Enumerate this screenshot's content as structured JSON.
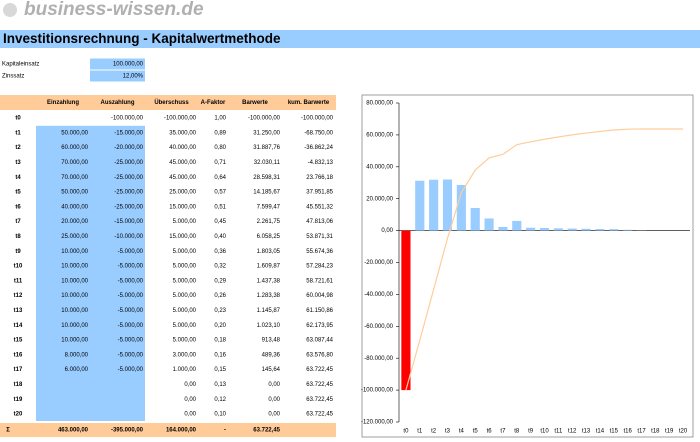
{
  "header": {
    "logo": "business-wissen.de",
    "title": "Investitionsrechnung - Kapitalwertmethode"
  },
  "inputs": [
    {
      "label": "Kapitaleinsatz",
      "value": "100.000,00"
    },
    {
      "label": "Zinssatz",
      "value": "12,00%"
    }
  ],
  "table": {
    "columns": [
      "Einzahlung",
      "Auszahlung",
      "Überschuss",
      "A-Faktor",
      "Barwerte",
      "kum. Barwerte"
    ],
    "rows": [
      [
        "t0",
        null,
        "-100.000,00",
        "-100.000,00",
        "1,00",
        "-100.000,00",
        "-100.000,00"
      ],
      [
        "t1",
        "50.000,00",
        "-15.000,00",
        "35.000,00",
        "0,89",
        "31.250,00",
        "-68.750,00"
      ],
      [
        "t2",
        "60.000,00",
        "-20.000,00",
        "40.000,00",
        "0,80",
        "31.887,76",
        "-36.862,24"
      ],
      [
        "t3",
        "70.000,00",
        "-25.000,00",
        "45.000,00",
        "0,71",
        "32.030,11",
        "-4.832,13"
      ],
      [
        "t4",
        "70.000,00",
        "-25.000,00",
        "45.000,00",
        "0,64",
        "28.598,31",
        "23.766,18"
      ],
      [
        "t5",
        "50.000,00",
        "-25.000,00",
        "25.000,00",
        "0,57",
        "14.185,67",
        "37.951,85"
      ],
      [
        "t6",
        "40.000,00",
        "-25.000,00",
        "15.000,00",
        "0,51",
        "7.599,47",
        "45.551,32"
      ],
      [
        "t7",
        "20.000,00",
        "-15.000,00",
        "5.000,00",
        "0,45",
        "2.261,75",
        "47.813,06"
      ],
      [
        "t8",
        "25.000,00",
        "-10.000,00",
        "15.000,00",
        "0,40",
        "6.058,25",
        "53.871,31"
      ],
      [
        "t9",
        "10.000,00",
        "-5.000,00",
        "5.000,00",
        "0,36",
        "1.803,05",
        "55.674,36"
      ],
      [
        "t10",
        "10.000,00",
        "-5.000,00",
        "5.000,00",
        "0,32",
        "1.609,87",
        "57.284,23"
      ],
      [
        "t11",
        "10.000,00",
        "-5.000,00",
        "5.000,00",
        "0,29",
        "1.437,38",
        "58.721,61"
      ],
      [
        "t12",
        "10.000,00",
        "-5.000,00",
        "5.000,00",
        "0,26",
        "1.283,38",
        "60.004,98"
      ],
      [
        "t13",
        "10.000,00",
        "-5.000,00",
        "5.000,00",
        "0,23",
        "1.145,87",
        "61.150,86"
      ],
      [
        "t14",
        "10.000,00",
        "-5.000,00",
        "5.000,00",
        "0,20",
        "1.023,10",
        "62.173,95"
      ],
      [
        "t15",
        "10.000,00",
        "-5.000,00",
        "5.000,00",
        "0,18",
        "913,48",
        "63.087,44"
      ],
      [
        "t16",
        "8.000,00",
        "-5.000,00",
        "3.000,00",
        "0,16",
        "489,36",
        "63.576,80"
      ],
      [
        "t17",
        "6.000,00",
        "-5.000,00",
        "1.000,00",
        "0,15",
        "145,64",
        "63.722,45"
      ],
      [
        "t18",
        null,
        null,
        "0,00",
        "0,13",
        "0,00",
        "63.722,45"
      ],
      [
        "t19",
        null,
        null,
        "0,00",
        "0,12",
        "0,00",
        "63.722,45"
      ],
      [
        "t20",
        null,
        null,
        "0,00",
        "0,10",
        "0,00",
        "63.722,45"
      ]
    ],
    "total": [
      "Σ",
      "463.000,00",
      "-395.000,00",
      "164.000,00",
      "-",
      "63.722,45",
      null
    ]
  },
  "chart_data": {
    "type": "bar_line",
    "categories": [
      "t0",
      "t1",
      "t2",
      "t3",
      "t4",
      "t5",
      "t6",
      "t7",
      "t8",
      "t9",
      "t10",
      "t11",
      "t12",
      "t13",
      "t14",
      "t15",
      "t16",
      "t17",
      "t18",
      "t19",
      "t20"
    ],
    "series": [
      {
        "name": "Barwerte",
        "kind": "bar",
        "color": "#99ccff",
        "negative_color": "#ff0000",
        "values": [
          -100000,
          31250,
          31887.76,
          32030.11,
          28598.31,
          14185.67,
          7599.47,
          2261.75,
          6058.25,
          1803.05,
          1609.87,
          1437.38,
          1283.38,
          1145.87,
          1023.1,
          913.48,
          489.36,
          145.64,
          0,
          0,
          0
        ]
      },
      {
        "name": "kum. Barwerte",
        "kind": "line",
        "color": "#ffcc99",
        "values": [
          -100000,
          -68750,
          -36862.24,
          -4832.13,
          23766.18,
          37951.85,
          45551.32,
          47813.06,
          53871.31,
          55674.36,
          57284.23,
          58721.61,
          60004.98,
          61150.86,
          62173.95,
          63087.44,
          63576.8,
          63722.45,
          63722.45,
          63722.45,
          63722.45
        ]
      }
    ],
    "ylim": [
      -120000,
      80000
    ],
    "yticks": [
      {
        "value": -120000,
        "label": "-120.000,00"
      },
      {
        "value": -100000,
        "label": "-100.000,00"
      },
      {
        "value": -80000,
        "label": "-80.000,00"
      },
      {
        "value": -60000,
        "label": "-60.000,00"
      },
      {
        "value": -40000,
        "label": "-40.000,00"
      },
      {
        "value": -20000,
        "label": "-20.000,00"
      },
      {
        "value": 0,
        "label": "0,00"
      },
      {
        "value": 20000,
        "label": "20.000,00"
      },
      {
        "value": 40000,
        "label": "40.000,00"
      },
      {
        "value": 60000,
        "label": "60.000,00"
      },
      {
        "value": 80000,
        "label": "80.000,00"
      }
    ]
  }
}
